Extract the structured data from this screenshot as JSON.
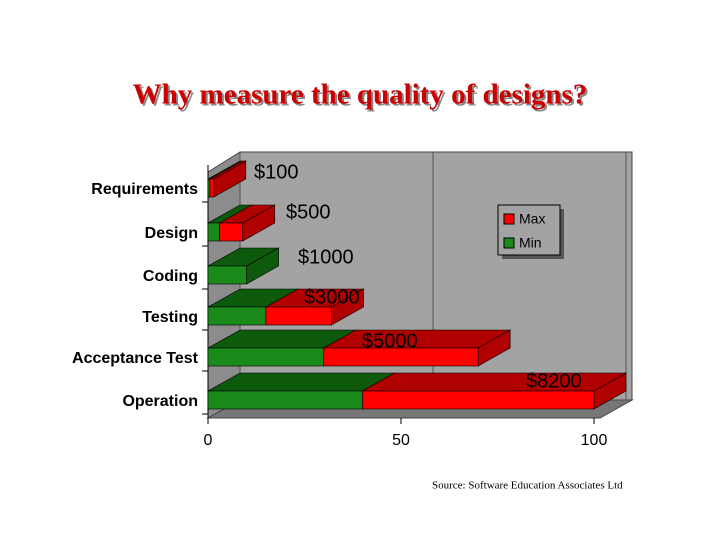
{
  "chart_data": {
    "type": "bar3d_stacked_horizontal",
    "title": "Why measure the quality of designs?",
    "categories": [
      "Requirements",
      "Design",
      "Coding",
      "Testing",
      "Acceptance Test",
      "Operation"
    ],
    "series": [
      {
        "name": "Min",
        "color": "#1a8a1a",
        "values": [
          0.5,
          3,
          10,
          15,
          30,
          40
        ]
      },
      {
        "name": "Max",
        "color": "#ff0000",
        "values": [
          1,
          6,
          0,
          17,
          40,
          60
        ]
      }
    ],
    "stacked": true,
    "xlim": [
      0,
      100
    ],
    "xticks": [
      0,
      50,
      100
    ],
    "grid": true,
    "legend": "upper right",
    "annotations": [
      "$100",
      "$500",
      "$1000",
      "$3000",
      "$5000",
      "$8200"
    ],
    "source": "Source: Software Education Associates Ltd"
  }
}
